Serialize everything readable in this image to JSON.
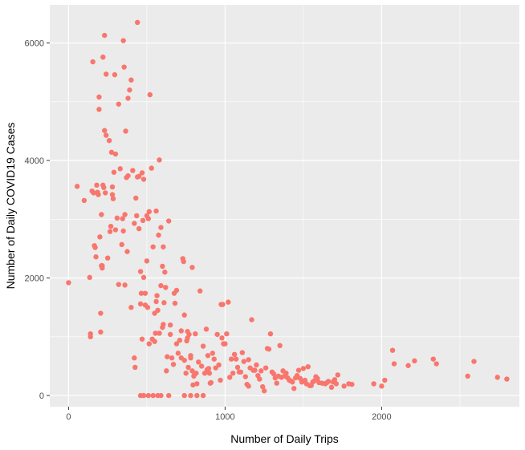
{
  "chart_data": {
    "type": "scatter",
    "xlabel": "Number of Daily Trips",
    "ylabel": "Number of Daily COVID19 Cases",
    "xlim": [
      -120,
      2880
    ],
    "ylim": [
      -190,
      6650
    ],
    "x_ticks": [
      0,
      1000,
      2000
    ],
    "y_ticks": [
      0,
      2000,
      4000,
      6000
    ],
    "x_minor": [
      500,
      1500,
      2500
    ],
    "y_minor": [
      1000,
      3000,
      5000
    ],
    "grid": true,
    "panel_color": "#EBEBEB",
    "point_color": "#F8766D",
    "points": [
      [
        0,
        1920
      ],
      [
        55,
        3560
      ],
      [
        100,
        3320
      ],
      [
        135,
        2010
      ],
      [
        140,
        1050
      ],
      [
        140,
        1000
      ],
      [
        150,
        3480
      ],
      [
        155,
        5680
      ],
      [
        160,
        3450
      ],
      [
        165,
        2550
      ],
      [
        170,
        2520
      ],
      [
        175,
        2360
      ],
      [
        180,
        3580
      ],
      [
        185,
        3460
      ],
      [
        190,
        3420
      ],
      [
        195,
        5080
      ],
      [
        195,
        4870
      ],
      [
        200,
        2700
      ],
      [
        205,
        1400
      ],
      [
        205,
        1080
      ],
      [
        210,
        3080
      ],
      [
        210,
        2210
      ],
      [
        215,
        2210
      ],
      [
        215,
        2170
      ],
      [
        220,
        5760
      ],
      [
        220,
        3580
      ],
      [
        225,
        3540
      ],
      [
        230,
        6130
      ],
      [
        230,
        4510
      ],
      [
        235,
        3450
      ],
      [
        240,
        5470
      ],
      [
        240,
        4430
      ],
      [
        250,
        2340
      ],
      [
        260,
        4340
      ],
      [
        265,
        2790
      ],
      [
        270,
        2880
      ],
      [
        275,
        4140
      ],
      [
        280,
        3550
      ],
      [
        280,
        3420
      ],
      [
        285,
        3350
      ],
      [
        290,
        3800
      ],
      [
        295,
        5460
      ],
      [
        300,
        4110
      ],
      [
        300,
        2820
      ],
      [
        310,
        3020
      ],
      [
        320,
        1890
      ],
      [
        320,
        4960
      ],
      [
        330,
        3860
      ],
      [
        340,
        2570
      ],
      [
        345,
        3010
      ],
      [
        350,
        6040
      ],
      [
        350,
        2800
      ],
      [
        355,
        5590
      ],
      [
        360,
        3080
      ],
      [
        360,
        1880
      ],
      [
        365,
        4500
      ],
      [
        370,
        3710
      ],
      [
        375,
        2450
      ],
      [
        380,
        3740
      ],
      [
        380,
        5060
      ],
      [
        390,
        5200
      ],
      [
        400,
        5370
      ],
      [
        400,
        1500
      ],
      [
        410,
        3830
      ],
      [
        420,
        2930
      ],
      [
        420,
        640
      ],
      [
        425,
        480
      ],
      [
        430,
        3360
      ],
      [
        435,
        3060
      ],
      [
        440,
        6350
      ],
      [
        440,
        3720
      ],
      [
        450,
        3730
      ],
      [
        450,
        2840
      ],
      [
        460,
        1560
      ],
      [
        460,
        2110
      ],
      [
        465,
        1740
      ],
      [
        470,
        3790
      ],
      [
        470,
        960
      ],
      [
        475,
        2980
      ],
      [
        480,
        3680
      ],
      [
        480,
        2010
      ],
      [
        490,
        1740
      ],
      [
        490,
        1540
      ],
      [
        500,
        3060
      ],
      [
        500,
        2290
      ],
      [
        505,
        1500
      ],
      [
        510,
        3010
      ],
      [
        515,
        3130
      ],
      [
        515,
        880
      ],
      [
        520,
        5120
      ],
      [
        530,
        3870
      ],
      [
        535,
        960
      ],
      [
        540,
        2530
      ],
      [
        550,
        1400
      ],
      [
        550,
        920
      ],
      [
        555,
        1060
      ],
      [
        560,
        3140
      ],
      [
        560,
        1600
      ],
      [
        565,
        1700
      ],
      [
        570,
        1450
      ],
      [
        575,
        2730
      ],
      [
        580,
        4010
      ],
      [
        580,
        1060
      ],
      [
        590,
        1870
      ],
      [
        590,
        2860
      ],
      [
        600,
        2200
      ],
      [
        600,
        1160
      ],
      [
        605,
        2530
      ],
      [
        605,
        1210
      ],
      [
        610,
        1580
      ],
      [
        615,
        2100
      ],
      [
        620,
        1840
      ],
      [
        625,
        420
      ],
      [
        630,
        660
      ],
      [
        640,
        2970
      ],
      [
        650,
        1200
      ],
      [
        650,
        1040
      ],
      [
        660,
        640
      ],
      [
        670,
        530
      ],
      [
        675,
        1740
      ],
      [
        680,
        1570
      ],
      [
        690,
        1790
      ],
      [
        690,
        880
      ],
      [
        700,
        720
      ],
      [
        710,
        940
      ],
      [
        720,
        640
      ],
      [
        720,
        1100
      ],
      [
        730,
        2330
      ],
      [
        735,
        2280
      ],
      [
        740,
        1370
      ],
      [
        740,
        600
      ],
      [
        750,
        380
      ],
      [
        755,
        930
      ],
      [
        760,
        1090
      ],
      [
        760,
        980
      ],
      [
        765,
        480
      ],
      [
        770,
        1040
      ],
      [
        780,
        640
      ],
      [
        780,
        680
      ],
      [
        790,
        2180
      ],
      [
        790,
        420
      ],
      [
        795,
        180
      ],
      [
        800,
        330
      ],
      [
        805,
        360
      ],
      [
        810,
        1050
      ],
      [
        815,
        380
      ],
      [
        820,
        200
      ],
      [
        830,
        570
      ],
      [
        840,
        1780
      ],
      [
        850,
        500
      ],
      [
        860,
        840
      ],
      [
        870,
        380
      ],
      [
        880,
        1130
      ],
      [
        885,
        440
      ],
      [
        890,
        680
      ],
      [
        895,
        460
      ],
      [
        900,
        380
      ],
      [
        905,
        210
      ],
      [
        910,
        220
      ],
      [
        920,
        720
      ],
      [
        930,
        620
      ],
      [
        940,
        470
      ],
      [
        950,
        1040
      ],
      [
        960,
        520
      ],
      [
        970,
        260
      ],
      [
        975,
        1550
      ],
      [
        980,
        980
      ],
      [
        985,
        1550
      ],
      [
        990,
        880
      ],
      [
        1000,
        880
      ],
      [
        1010,
        1050
      ],
      [
        1020,
        1590
      ],
      [
        1030,
        310
      ],
      [
        1040,
        620
      ],
      [
        1050,
        380
      ],
      [
        1060,
        700
      ],
      [
        1070,
        620
      ],
      [
        1080,
        480
      ],
      [
        1090,
        400
      ],
      [
        1100,
        400
      ],
      [
        1110,
        730
      ],
      [
        1120,
        580
      ],
      [
        1130,
        320
      ],
      [
        1140,
        190
      ],
      [
        1150,
        160
      ],
      [
        1150,
        610
      ],
      [
        1160,
        470
      ],
      [
        1170,
        1290
      ],
      [
        1180,
        430
      ],
      [
        1190,
        430
      ],
      [
        1200,
        520
      ],
      [
        1210,
        340
      ],
      [
        1220,
        280
      ],
      [
        1230,
        420
      ],
      [
        1240,
        150
      ],
      [
        1250,
        80
      ],
      [
        1260,
        470
      ],
      [
        1270,
        800
      ],
      [
        1280,
        790
      ],
      [
        1290,
        1050
      ],
      [
        1300,
        400
      ],
      [
        1310,
        370
      ],
      [
        1320,
        300
      ],
      [
        1330,
        210
      ],
      [
        1340,
        330
      ],
      [
        1350,
        850
      ],
      [
        1360,
        310
      ],
      [
        1370,
        420
      ],
      [
        1380,
        330
      ],
      [
        1390,
        380
      ],
      [
        1400,
        300
      ],
      [
        1410,
        260
      ],
      [
        1420,
        250
      ],
      [
        1430,
        230
      ],
      [
        1440,
        120
      ],
      [
        1450,
        300
      ],
      [
        1460,
        340
      ],
      [
        1470,
        430
      ],
      [
        1480,
        290
      ],
      [
        1490,
        230
      ],
      [
        1500,
        460
      ],
      [
        1510,
        260
      ],
      [
        1520,
        200
      ],
      [
        1530,
        490
      ],
      [
        1540,
        170
      ],
      [
        1550,
        170
      ],
      [
        1560,
        230
      ],
      [
        1570,
        250
      ],
      [
        1580,
        320
      ],
      [
        1590,
        290
      ],
      [
        1600,
        220
      ],
      [
        1620,
        210
      ],
      [
        1640,
        200
      ],
      [
        1650,
        220
      ],
      [
        1660,
        240
      ],
      [
        1680,
        140
      ],
      [
        1690,
        230
      ],
      [
        1700,
        270
      ],
      [
        1710,
        200
      ],
      [
        1720,
        350
      ],
      [
        1760,
        160
      ],
      [
        1790,
        200
      ],
      [
        1810,
        190
      ],
      [
        1950,
        200
      ],
      [
        2000,
        160
      ],
      [
        2020,
        260
      ],
      [
        2070,
        770
      ],
      [
        2080,
        540
      ],
      [
        2170,
        510
      ],
      [
        2210,
        590
      ],
      [
        2330,
        620
      ],
      [
        2350,
        540
      ],
      [
        2550,
        330
      ],
      [
        2590,
        580
      ],
      [
        2740,
        310
      ],
      [
        2800,
        280
      ],
      [
        460,
        0
      ],
      [
        480,
        0
      ],
      [
        510,
        0
      ],
      [
        540,
        0
      ],
      [
        570,
        0
      ],
      [
        590,
        0
      ],
      [
        640,
        0
      ],
      [
        740,
        0
      ],
      [
        780,
        0
      ],
      [
        820,
        0
      ],
      [
        860,
        0
      ]
    ]
  }
}
